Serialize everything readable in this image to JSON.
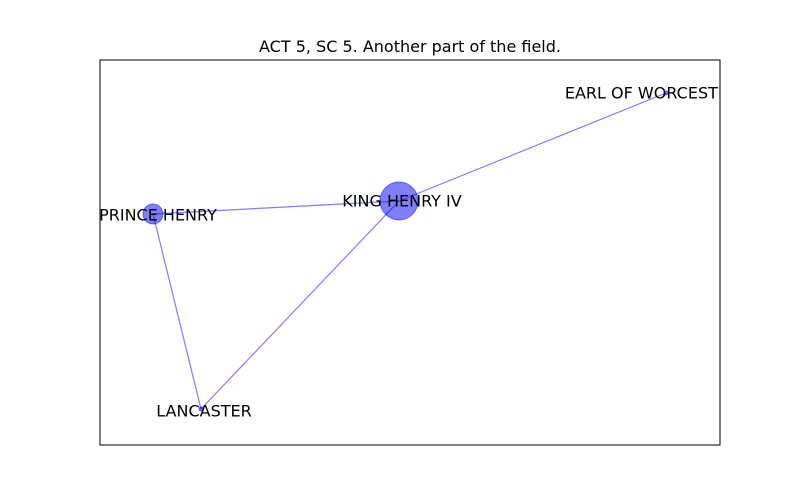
{
  "title": "ACT 5, SC 5. Another part of the field.",
  "colors": {
    "node": "#0000ff",
    "edge": "#0000ff",
    "frame": "#000000"
  },
  "nodes": [
    {
      "id": "king",
      "label": "KING HENRY IV",
      "degree": 3
    },
    {
      "id": "prince",
      "label": "PRINCE HENRY",
      "degree": 2
    },
    {
      "id": "lancaster",
      "label": "LANCASTER",
      "degree": 2
    },
    {
      "id": "worcester",
      "label": "EARL OF WORCESTER",
      "degree": 1
    }
  ],
  "edges": [
    {
      "source": "king",
      "target": "worcester"
    },
    {
      "source": "king",
      "target": "prince"
    },
    {
      "source": "king",
      "target": "lancaster"
    },
    {
      "source": "prince",
      "target": "lancaster"
    }
  ]
}
